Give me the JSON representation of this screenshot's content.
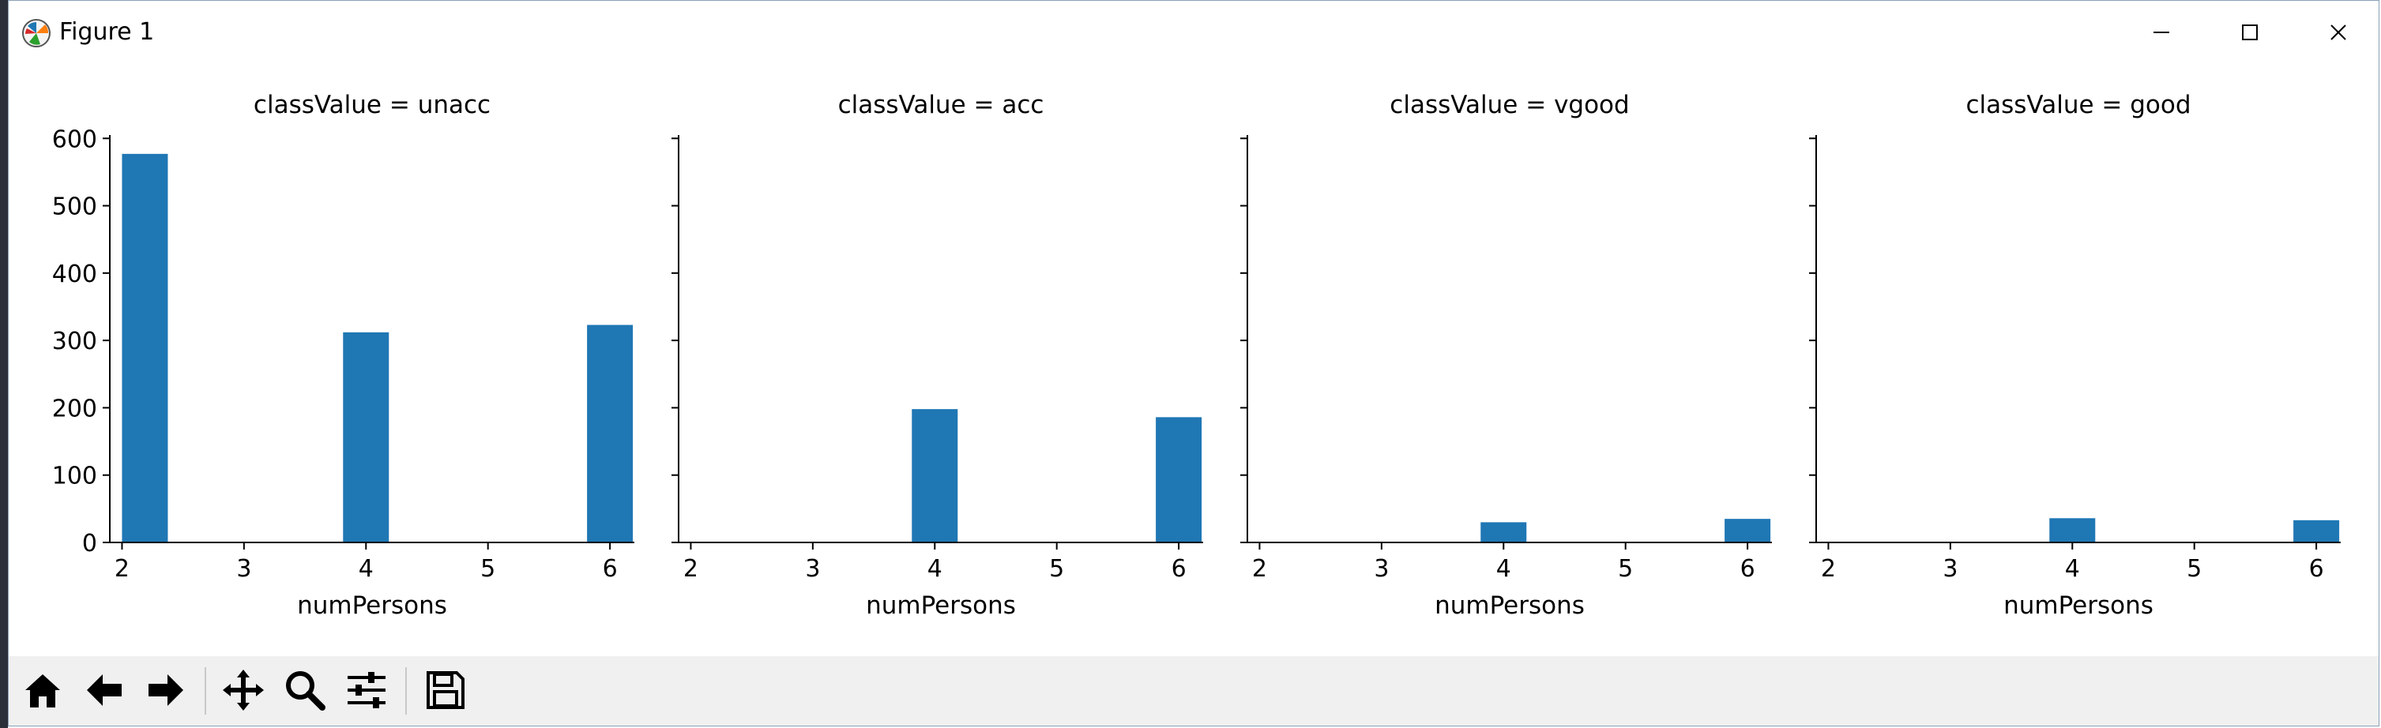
{
  "window": {
    "title": "Figure 1",
    "controls": [
      "minimize",
      "maximize",
      "close"
    ]
  },
  "toolbar": {
    "buttons": [
      "home-icon",
      "back-icon",
      "forward-icon",
      "pan-icon",
      "zoom-icon",
      "configure-subplots-icon",
      "save-icon"
    ]
  },
  "chart_data": [
    {
      "type": "bar",
      "title": "classValue = unacc",
      "xlabel": "numPersons",
      "ylabel": "",
      "x": [
        2,
        4,
        6
      ],
      "values": [
        577,
        312,
        323
      ],
      "xticks": [
        "2",
        "3",
        "4",
        "5",
        "6"
      ],
      "yticks": [
        "0",
        "100",
        "200",
        "300",
        "400",
        "500",
        "600"
      ],
      "xlim": [
        1.9,
        6.2
      ],
      "ylim": [
        0,
        605
      ],
      "color": "#1f77b4",
      "grid": false
    },
    {
      "type": "bar",
      "title": "classValue = acc",
      "xlabel": "numPersons",
      "ylabel": "",
      "x": [
        4,
        6
      ],
      "values": [
        198,
        186
      ],
      "xticks": [
        "2",
        "3",
        "4",
        "5",
        "6"
      ],
      "xlim": [
        1.9,
        6.2
      ],
      "ylim": [
        0,
        605
      ],
      "color": "#1f77b4",
      "grid": false
    },
    {
      "type": "bar",
      "title": "classValue = vgood",
      "xlabel": "numPersons",
      "ylabel": "",
      "x": [
        4,
        6
      ],
      "values": [
        30,
        35
      ],
      "xticks": [
        "2",
        "3",
        "4",
        "5",
        "6"
      ],
      "xlim": [
        1.9,
        6.2
      ],
      "ylim": [
        0,
        605
      ],
      "color": "#1f77b4",
      "grid": false
    },
    {
      "type": "bar",
      "title": "classValue = good",
      "xlabel": "numPersons",
      "ylabel": "",
      "x": [
        4,
        6
      ],
      "values": [
        36,
        33
      ],
      "xticks": [
        "2",
        "3",
        "4",
        "5",
        "6"
      ],
      "xlim": [
        1.9,
        6.2
      ],
      "ylim": [
        0,
        605
      ],
      "color": "#1f77b4",
      "grid": false
    }
  ]
}
